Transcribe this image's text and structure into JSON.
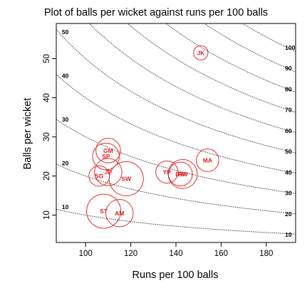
{
  "chart_data": {
    "type": "scatter",
    "title": "Plot of balls per wicket against runs per 100 balls",
    "xlabel": "Runs per 100 balls",
    "ylabel": "Balls per wicket",
    "xlim": [
      87,
      193
    ],
    "ylim": [
      3,
      59
    ],
    "xticks": [
      "100",
      "120",
      "140",
      "160",
      "180"
    ],
    "yticks": [
      "10",
      "20",
      "30",
      "40",
      "50"
    ],
    "grid": false,
    "contours": {
      "quantity": "runs per wicket",
      "levels": [
        "10",
        "20",
        "30",
        "40",
        "50",
        "60",
        "70",
        "80",
        "90",
        "100"
      ],
      "left_labels": [
        "10",
        "20",
        "30",
        "40",
        "50"
      ],
      "right_labels": [
        "10",
        "20",
        "30",
        "40",
        "50",
        "60",
        "70",
        "80",
        "90",
        "100"
      ]
    },
    "bubble_color": "#e03030",
    "points": [
      {
        "label": "JK",
        "x": 151,
        "y": 51.5,
        "size": 0.42
      },
      {
        "label": "MA",
        "x": 154,
        "y": 24,
        "size": 0.66
      },
      {
        "label": "GM",
        "x": 110,
        "y": 26.5,
        "size": 0.72
      },
      {
        "label": "SP",
        "x": 109,
        "y": 25,
        "size": 0.78
      },
      {
        "label": "JP",
        "x": 110,
        "y": 21,
        "size": 0.8
      },
      {
        "label": "SG",
        "x": 106,
        "y": 20,
        "size": 0.6
      },
      {
        "label": "SW",
        "x": 118,
        "y": 19.3,
        "size": 1.0
      },
      {
        "label": "YP",
        "x": 136,
        "y": 21,
        "size": 0.65
      },
      {
        "label": "DW",
        "x": 142,
        "y": 20.5,
        "size": 0.7
      },
      {
        "label": "RW",
        "x": 143,
        "y": 20.5,
        "size": 0.85
      },
      {
        "label": "ST",
        "x": 108,
        "y": 11,
        "size": 1.0
      },
      {
        "label": "AM",
        "x": 115,
        "y": 10.5,
        "size": 0.8
      }
    ]
  }
}
